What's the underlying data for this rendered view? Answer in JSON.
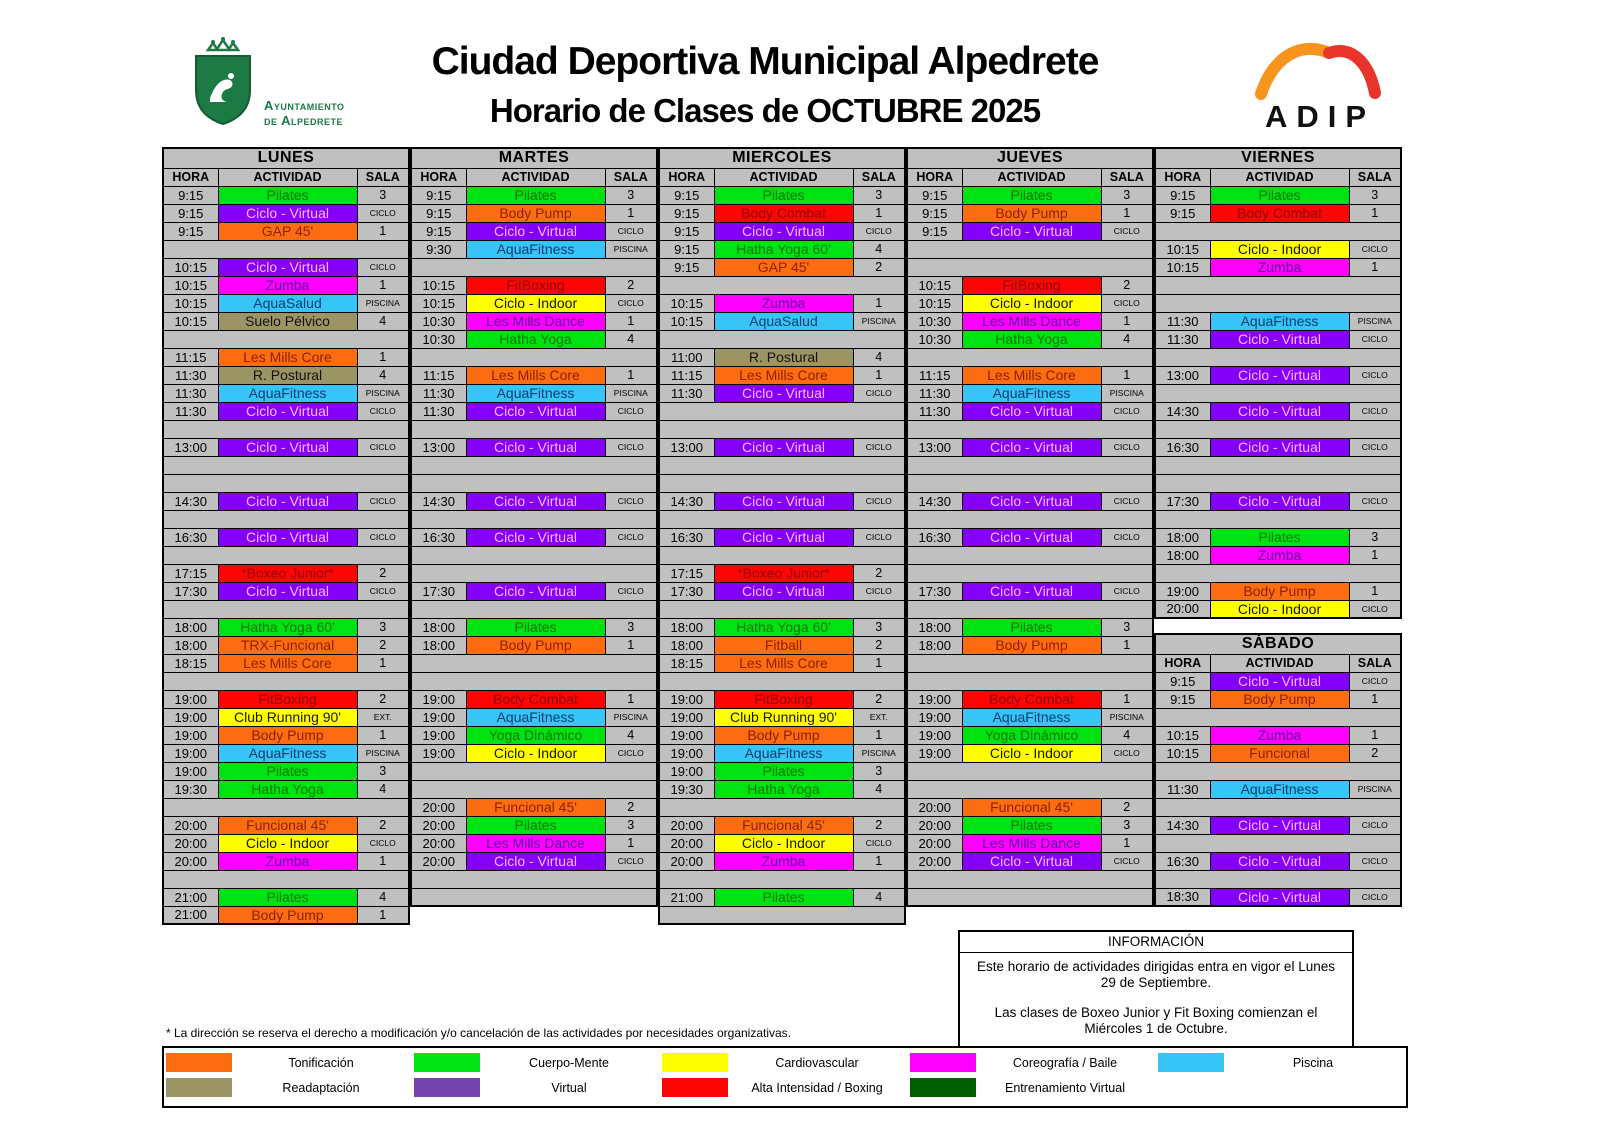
{
  "header": {
    "crest_line1": "Ayuntamiento",
    "crest_line2": "de Alpedrete",
    "title": "Ciudad Deportiva Municipal Alpedrete",
    "subtitle": "Horario de Clases de OCTUBRE 2025",
    "brand": "ADIP"
  },
  "table_headers": {
    "hora": "HORA",
    "actividad": "ACTIVIDAD",
    "sala": "SALA"
  },
  "colors": {
    "gray": "#c0c0c0",
    "green": {
      "bg": "#00e312",
      "fg": "#0b7500"
    },
    "purple": {
      "bg": "#8400f8",
      "fg": "#ffb9fb"
    },
    "orange": {
      "bg": "#fb6d10",
      "fg": "#8f2000"
    },
    "magenta": {
      "bg": "#ff00ff",
      "fg": "#5a0b9e"
    },
    "cyan": {
      "bg": "#37c5f8",
      "fg": "#093e6e"
    },
    "olive": {
      "bg": "#9b9565",
      "fg": "#111111"
    },
    "red": {
      "bg": "#fe0505",
      "fg": "#8f0000"
    },
    "yellow": {
      "bg": "#ffff02",
      "fg": "#161616"
    }
  },
  "days": [
    {
      "name": "LUNES",
      "rows": [
        [
          "9:15",
          "Pilates",
          "3",
          "green"
        ],
        [
          "9:15",
          "Ciclo - Virtual",
          "CICLO",
          "purple"
        ],
        [
          "9:15",
          "GAP 45'",
          "1",
          "orange"
        ],
        null,
        [
          "10:15",
          "Ciclo - Virtual",
          "CICLO",
          "purple"
        ],
        [
          "10:15",
          "Zumba",
          "1",
          "magenta"
        ],
        [
          "10:15",
          "AquaSalud",
          "PISCINA",
          "cyan"
        ],
        [
          "10:15",
          "Suelo Pélvico",
          "4",
          "olive"
        ],
        null,
        [
          "11:15",
          "Les Mills Core",
          "1",
          "orange"
        ],
        [
          "11:30",
          "R. Postural",
          "4",
          "olive"
        ],
        [
          "11:30",
          "AquaFitness",
          "PISCINA",
          "cyan"
        ],
        [
          "11:30",
          "Ciclo - Virtual",
          "CICLO",
          "purple"
        ],
        null,
        [
          "13:00",
          "Ciclo - Virtual",
          "CICLO",
          "purple"
        ],
        null,
        null,
        [
          "14:30",
          "Ciclo - Virtual",
          "CICLO",
          "purple"
        ],
        null,
        [
          "16:30",
          "Ciclo - Virtual",
          "CICLO",
          "purple"
        ],
        null,
        [
          "17:15",
          "*Boxeo Junior*",
          "2",
          "red"
        ],
        [
          "17:30",
          "Ciclo - Virtual",
          "CICLO",
          "purple"
        ],
        null,
        [
          "18:00",
          "Hatha Yoga 60'",
          "3",
          "green"
        ],
        [
          "18:00",
          "TRX-Funcional",
          "2",
          "orange"
        ],
        [
          "18:15",
          "Les Mills Core",
          "1",
          "orange"
        ],
        null,
        [
          "19:00",
          "FitBoxing",
          "2",
          "red"
        ],
        [
          "19:00",
          "Club Running 90'",
          "EXT.",
          "yellow"
        ],
        [
          "19:00",
          "Body Pump",
          "1",
          "orange"
        ],
        [
          "19:00",
          "AquaFitness",
          "PISCINA",
          "cyan"
        ],
        [
          "19:00",
          "Pilates",
          "3",
          "green"
        ],
        [
          "19:30",
          "Hatha Yoga",
          "4",
          "green"
        ],
        null,
        [
          "20:00",
          "Funcional 45'",
          "2",
          "orange"
        ],
        [
          "20:00",
          "Ciclo - Indoor",
          "CICLO",
          "yellow"
        ],
        [
          "20:00",
          "Zumba",
          "1",
          "magenta"
        ],
        null,
        [
          "21:00",
          "Pilates",
          "4",
          "green"
        ],
        [
          "21:00",
          "Body Pump",
          "1",
          "orange"
        ]
      ]
    },
    {
      "name": "MARTES",
      "rows": [
        [
          "9:15",
          "Pilates",
          "3",
          "green"
        ],
        [
          "9:15",
          "Body Pump",
          "1",
          "orange"
        ],
        [
          "9:15",
          "Ciclo - Virtual",
          "CICLO",
          "purple"
        ],
        [
          "9:30",
          "AquaFitness",
          "PISCINA",
          "cyan"
        ],
        null,
        [
          "10:15",
          "FitBoxing",
          "2",
          "red"
        ],
        [
          "10:15",
          "Ciclo - Indoor",
          "CICLO",
          "yellow"
        ],
        [
          "10:30",
          "Les Mills Dance",
          "1",
          "magenta"
        ],
        [
          "10:30",
          "Hatha Yoga",
          "4",
          "green"
        ],
        null,
        [
          "11:15",
          "Les Mills Core",
          "1",
          "orange"
        ],
        [
          "11:30",
          "AquaFitness",
          "PISCINA",
          "cyan"
        ],
        [
          "11:30",
          "Ciclo - Virtual",
          "CICLO",
          "purple"
        ],
        null,
        [
          "13:00",
          "Ciclo - Virtual",
          "CICLO",
          "purple"
        ],
        null,
        null,
        [
          "14:30",
          "Ciclo - Virtual",
          "CICLO",
          "purple"
        ],
        null,
        [
          "16:30",
          "Ciclo - Virtual",
          "CICLO",
          "purple"
        ],
        null,
        null,
        [
          "17:30",
          "Ciclo - Virtual",
          "CICLO",
          "purple"
        ],
        null,
        [
          "18:00",
          "Pilates",
          "3",
          "green"
        ],
        [
          "18:00",
          "Body Pump",
          "1",
          "orange"
        ],
        null,
        null,
        [
          "19:00",
          "Body Combat",
          "1",
          "red"
        ],
        [
          "19:00",
          "AquaFitness",
          "PISCINA",
          "cyan"
        ],
        [
          "19:00",
          "Yoga Dinámico",
          "4",
          "green"
        ],
        [
          "19:00",
          "Ciclo - Indoor",
          "CICLO",
          "yellow"
        ],
        null,
        null,
        [
          "20:00",
          "Funcional 45'",
          "2",
          "orange"
        ],
        [
          "20:00",
          "Pilates",
          "3",
          "green"
        ],
        [
          "20:00",
          "Les Mills Dance",
          "1",
          "magenta"
        ],
        [
          "20:00",
          "Ciclo - Virtual",
          "CICLO",
          "purple"
        ],
        null,
        null
      ]
    },
    {
      "name": "MIERCOLES",
      "rows": [
        [
          "9:15",
          "Pilates",
          "3",
          "green"
        ],
        [
          "9:15",
          "Body Combat",
          "1",
          "red"
        ],
        [
          "9:15",
          "Ciclo - Virtual",
          "CICLO",
          "purple"
        ],
        [
          "9:15",
          "Hatha Yoga 60'",
          "4",
          "green"
        ],
        [
          "9:15",
          "GAP 45'",
          "2",
          "orange"
        ],
        null,
        [
          "10:15",
          "Zumba",
          "1",
          "magenta"
        ],
        [
          "10:15",
          "AquaSalud",
          "PISCINA",
          "cyan"
        ],
        null,
        [
          "11:00",
          "R. Postural",
          "4",
          "olive"
        ],
        [
          "11:15",
          "Les Mills Core",
          "1",
          "orange"
        ],
        [
          "11:30",
          "Ciclo - Virtual",
          "CICLO",
          "purple"
        ],
        null,
        null,
        [
          "13:00",
          "Ciclo - Virtual",
          "CICLO",
          "purple"
        ],
        null,
        null,
        [
          "14:30",
          "Ciclo - Virtual",
          "CICLO",
          "purple"
        ],
        null,
        [
          "16:30",
          "Ciclo - Virtual",
          "CICLO",
          "purple"
        ],
        null,
        [
          "17:15",
          "*Boxeo Junior*",
          "2",
          "red"
        ],
        [
          "17:30",
          "Ciclo - Virtual",
          "CICLO",
          "purple"
        ],
        null,
        [
          "18:00",
          "Hatha Yoga 60'",
          "3",
          "green"
        ],
        [
          "18:00",
          "Fitball",
          "2",
          "orange"
        ],
        [
          "18:15",
          "Les Mills Core",
          "1",
          "orange"
        ],
        null,
        [
          "19:00",
          "FitBoxing",
          "2",
          "red"
        ],
        [
          "19:00",
          "Club Running 90'",
          "EXT.",
          "yellow"
        ],
        [
          "19:00",
          "Body Pump",
          "1",
          "orange"
        ],
        [
          "19:00",
          "AquaFitness",
          "PISCINA",
          "cyan"
        ],
        [
          "19:00",
          "Pilates",
          "3",
          "green"
        ],
        [
          "19:30",
          "Hatha Yoga",
          "4",
          "green"
        ],
        null,
        [
          "20:00",
          "Funcional 45'",
          "2",
          "orange"
        ],
        [
          "20:00",
          "Ciclo - Indoor",
          "CICLO",
          "yellow"
        ],
        [
          "20:00",
          "Zumba",
          "1",
          "magenta"
        ],
        null,
        [
          "21:00",
          "Pilates",
          "4",
          "green"
        ],
        null
      ]
    },
    {
      "name": "JUEVES",
      "rows": [
        [
          "9:15",
          "Pilates",
          "3",
          "green"
        ],
        [
          "9:15",
          "Body Pump",
          "1",
          "orange"
        ],
        [
          "9:15",
          "Ciclo - Virtual",
          "CICLO",
          "purple"
        ],
        null,
        null,
        [
          "10:15",
          "FitBoxing",
          "2",
          "red"
        ],
        [
          "10:15",
          "Ciclo - Indoor",
          "CICLO",
          "yellow"
        ],
        [
          "10:30",
          "Les Mills Dance",
          "1",
          "magenta"
        ],
        [
          "10:30",
          "Hatha Yoga",
          "4",
          "green"
        ],
        null,
        [
          "11:15",
          "Les Mills Core",
          "1",
          "orange"
        ],
        [
          "11:30",
          "AquaFitness",
          "PISCINA",
          "cyan"
        ],
        [
          "11:30",
          "Ciclo - Virtual",
          "CICLO",
          "purple"
        ],
        null,
        [
          "13:00",
          "Ciclo - Virtual",
          "CICLO",
          "purple"
        ],
        null,
        null,
        [
          "14:30",
          "Ciclo - Virtual",
          "CICLO",
          "purple"
        ],
        null,
        [
          "16:30",
          "Ciclo - Virtual",
          "CICLO",
          "purple"
        ],
        null,
        null,
        [
          "17:30",
          "Ciclo - Virtual",
          "CICLO",
          "purple"
        ],
        null,
        [
          "18:00",
          "Pilates",
          "3",
          "green"
        ],
        [
          "18:00",
          "Body Pump",
          "1",
          "orange"
        ],
        null,
        null,
        [
          "19:00",
          "Body Combat",
          "1",
          "red"
        ],
        [
          "19:00",
          "AquaFitness",
          "PISCINA",
          "cyan"
        ],
        [
          "19:00",
          "Yoga Dinámico",
          "4",
          "green"
        ],
        [
          "19:00",
          "Ciclo - Indoor",
          "CICLO",
          "yellow"
        ],
        null,
        null,
        [
          "20:00",
          "Funcional 45'",
          "2",
          "orange"
        ],
        [
          "20:00",
          "Pilates",
          "3",
          "green"
        ],
        [
          "20:00",
          "Les Mills Dance",
          "1",
          "magenta"
        ],
        [
          "20:00",
          "Ciclo - Virtual",
          "CICLO",
          "purple"
        ],
        null,
        null
      ]
    },
    {
      "name": "VIERNES",
      "rows": [
        [
          "9:15",
          "Pilates",
          "3",
          "green"
        ],
        [
          "9:15",
          "Body Combat",
          "1",
          "red"
        ],
        null,
        [
          "10:15",
          "Ciclo - Indoor",
          "CICLO",
          "yellow"
        ],
        [
          "10:15",
          "Zumba",
          "1",
          "magenta"
        ],
        null,
        null,
        [
          "11:30",
          "AquaFitness",
          "PISCINA",
          "cyan"
        ],
        [
          "11:30",
          "Ciclo - Virtual",
          "CICLO",
          "purple"
        ],
        null,
        [
          "13:00",
          "Ciclo - Virtual",
          "CICLO",
          "purple"
        ],
        null,
        [
          "14:30",
          "Ciclo - Virtual",
          "CICLO",
          "purple"
        ],
        null,
        [
          "16:30",
          "Ciclo - Virtual",
          "CICLO",
          "purple"
        ],
        null,
        null,
        [
          "17:30",
          "Ciclo - Virtual",
          "CICLO",
          "purple"
        ],
        null,
        [
          "18:00",
          "Pilates",
          "3",
          "green"
        ],
        [
          "18:00",
          "Zumba",
          "1",
          "magenta"
        ],
        null,
        [
          "19:00",
          "Body Pump",
          "1",
          "orange"
        ],
        [
          "20:00",
          "Ciclo - Indoor",
          "CICLO",
          "yellow"
        ]
      ]
    }
  ],
  "saturday": {
    "name": "SÁBADO",
    "rows": [
      [
        "9:15",
        "Ciclo - Virtual",
        "CICLO",
        "purple"
      ],
      [
        "9:15",
        "Body Pump",
        "1",
        "orange"
      ],
      null,
      [
        "10:15",
        "Zumba",
        "1",
        "magenta"
      ],
      [
        "10:15",
        "Funcional",
        "2",
        "orange"
      ],
      null,
      [
        "11:30",
        "AquaFitness",
        "PISCINA",
        "cyan"
      ],
      null,
      [
        "14:30",
        "Ciclo - Virtual",
        "CICLO",
        "purple"
      ],
      null,
      [
        "16:30",
        "Ciclo - Virtual",
        "CICLO",
        "purple"
      ],
      null,
      [
        "18:30",
        "Ciclo - Virtual",
        "CICLO",
        "purple"
      ]
    ]
  },
  "info_box": {
    "title": "INFORMACIÓN",
    "paragraph1": "Este horario de actividades dirigidas entra en vigor el Lunes 29 de Septiembre.",
    "paragraph2": "Las clases de Boxeo Junior y Fit Boxing comienzan el Miércoles 1 de Octubre."
  },
  "footnote": "* La dirección se reserva el derecho a modificación y/o cancelación de las actividades por necesidades organizativas.",
  "legend": {
    "rows": [
      [
        {
          "color": "#fb6d10",
          "label": "Tonificación"
        },
        {
          "color": "#00e312",
          "label": "Cuerpo-Mente"
        },
        {
          "color": "#ffff02",
          "label": "Cardiovascular"
        },
        {
          "color": "#ff00ff",
          "label": "Coreografía / Baile"
        },
        {
          "color": "#37c5f8",
          "label": "Piscina"
        }
      ],
      [
        {
          "color": "#9b9565",
          "label": "Readaptación"
        },
        {
          "color": "#7644ae",
          "label": "Virtual"
        },
        {
          "color": "#fe0505",
          "label": "Alta Intensidad / Boxing"
        },
        {
          "color": "#005e00",
          "label": "Entrenamiento Virtual"
        }
      ]
    ]
  }
}
